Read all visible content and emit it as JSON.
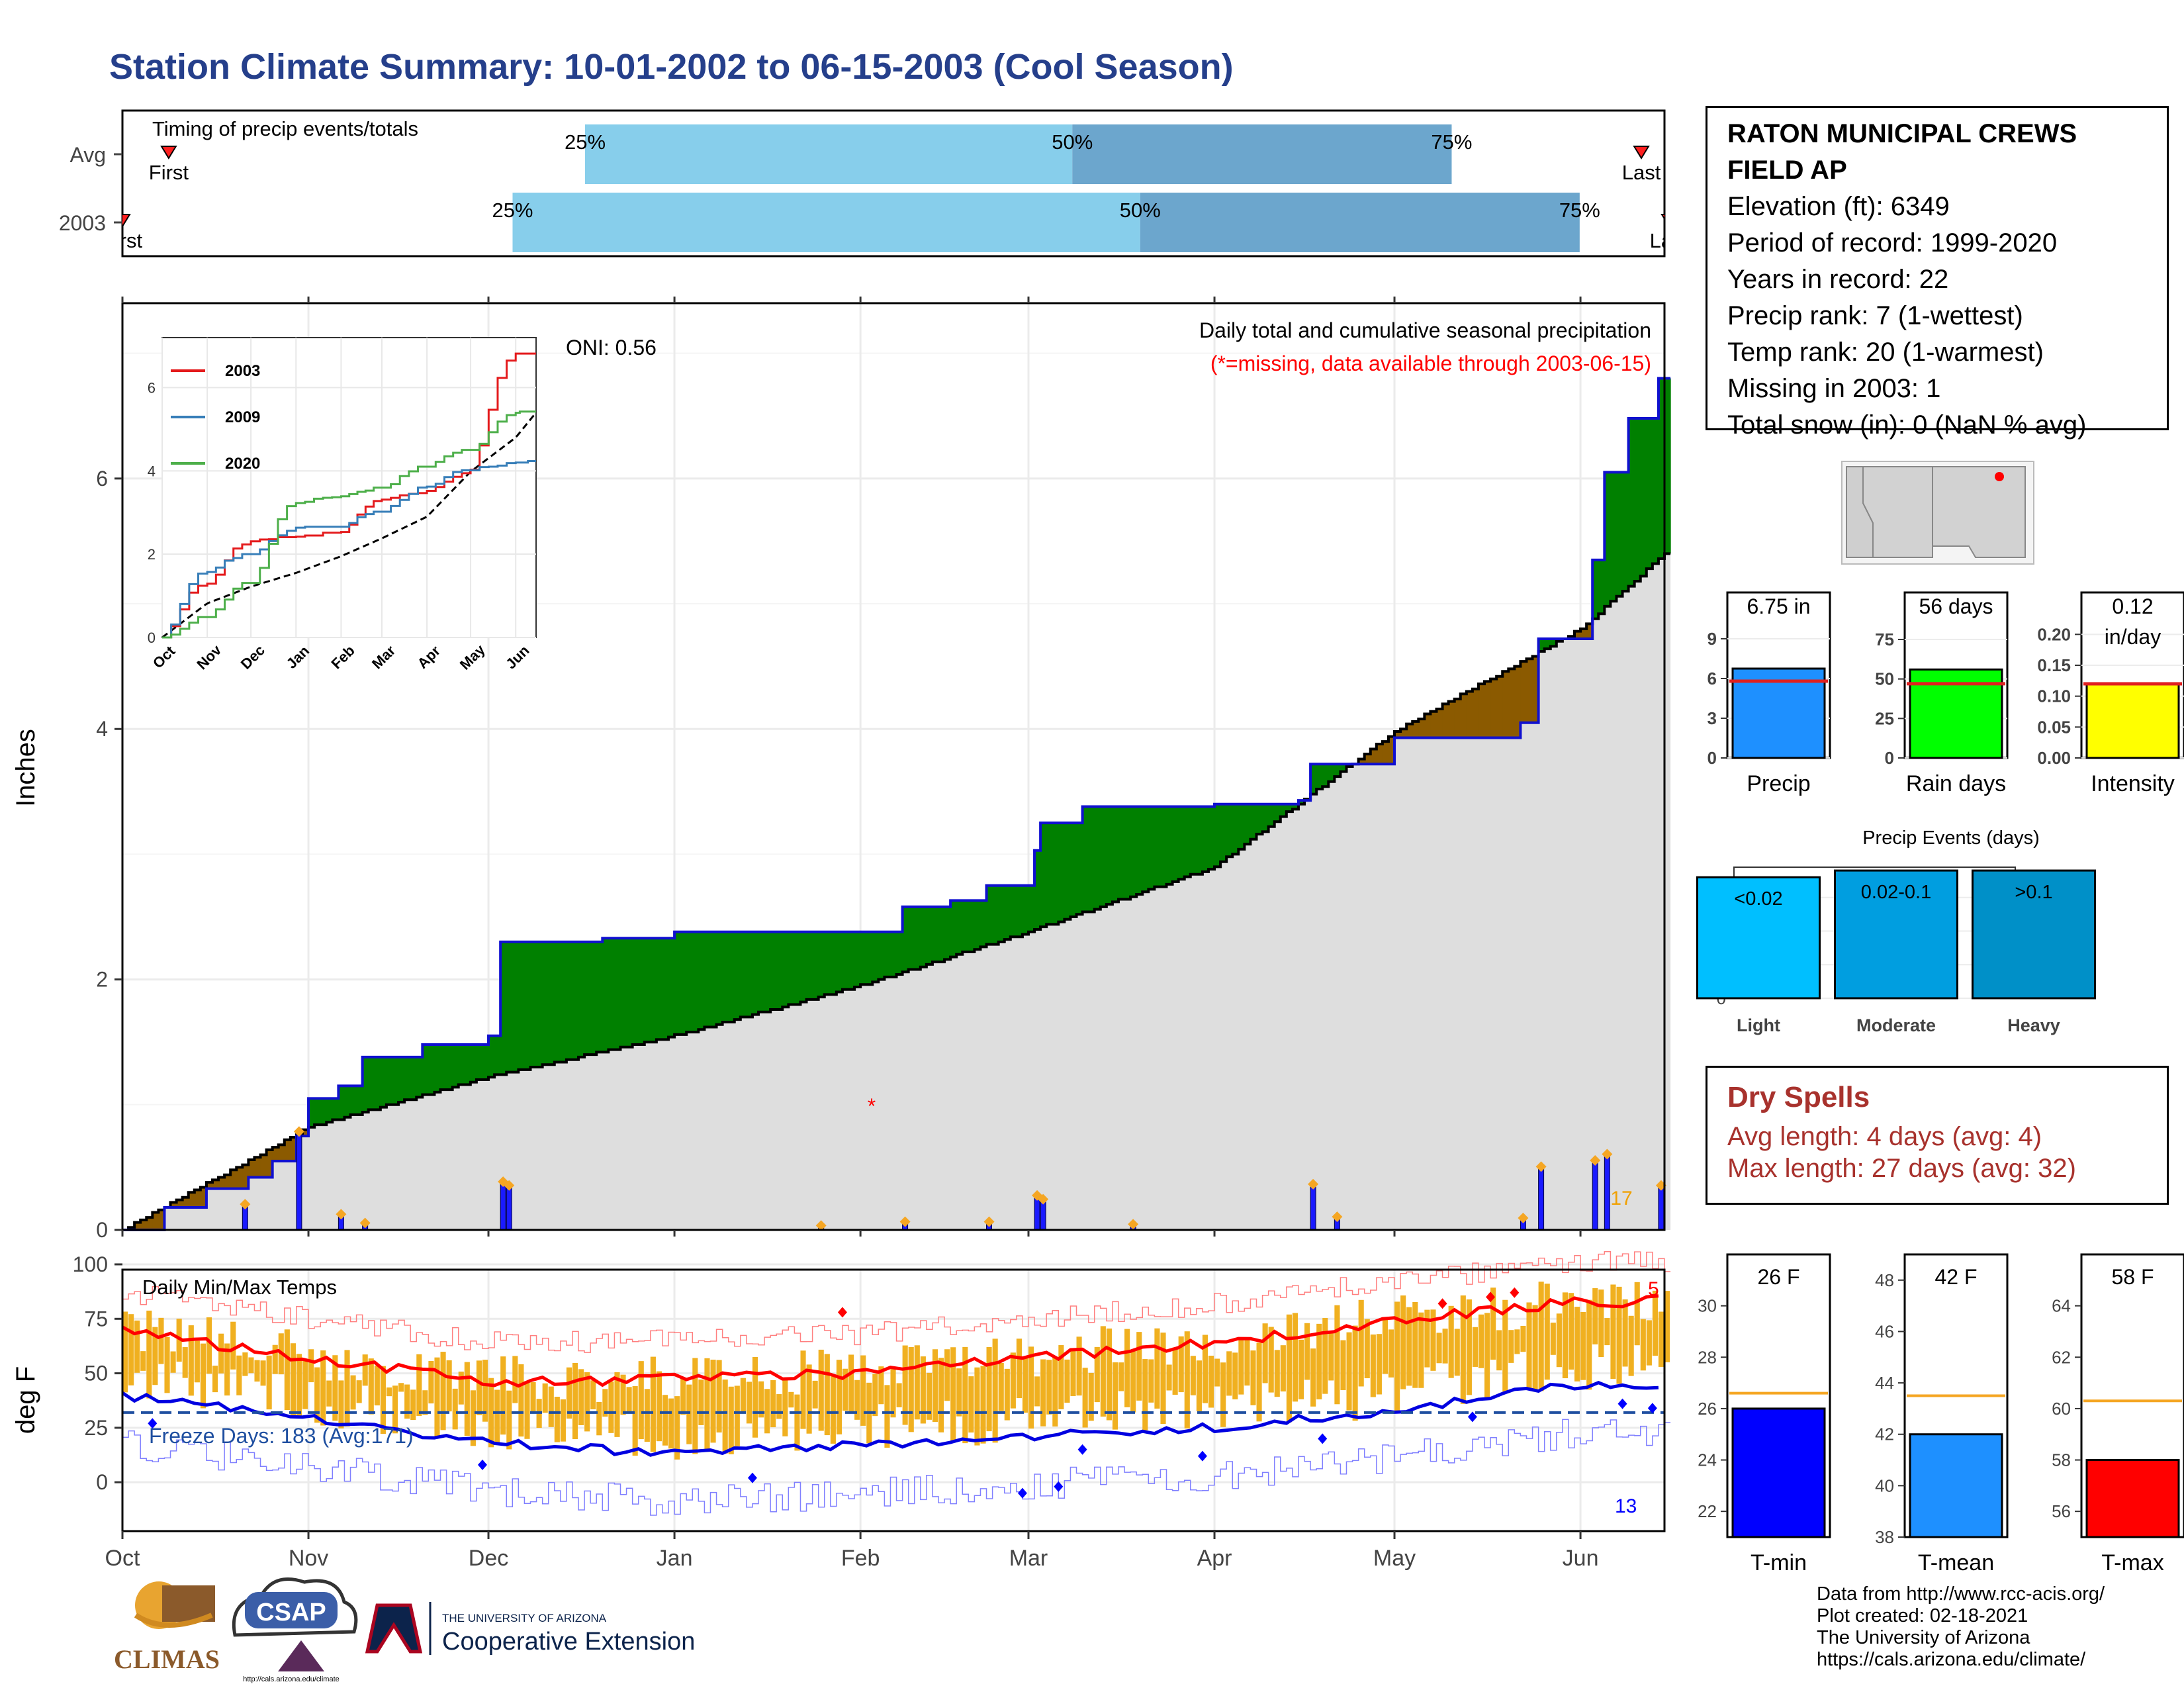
{
  "title": "Station Climate Summary: 10-01-2002 to 06-15-2003 (Cool Season)",
  "colors": {
    "title": "#253f8b",
    "above_avg_fill": "#008000",
    "below_avg_fill": "#8b5a00",
    "cum_fill": "#dedede",
    "daily_bar": "#1a1aff",
    "temp_bar": "#f0b020",
    "tmax_line": "#ff0000",
    "tmin_line": "#0000e0",
    "dry_spells": "#a8322d",
    "quartile_light": "#87ceeb",
    "quartile_dark": "#6ca6cd",
    "precip_bar": "#1e90ff",
    "raindays_bar": "#00ff00",
    "intensity_bar": "#ffff00",
    "event_light": "#00bfff",
    "event_moderate": "#009ee0",
    "event_heavy": "#0090c8",
    "tmin_bar": "#0000ff",
    "tmean_bar": "#1e90ff",
    "tmax_bar": "#ff0000",
    "avg_temp_line": "#f5a623"
  },
  "timing": {
    "title": "Timing of precip events/totals",
    "rows": [
      {
        "label": "Avg",
        "first_label": "First",
        "last_label": "Last",
        "first": 0.03,
        "last": 0.985,
        "q25": 0.3,
        "q50": 0.616,
        "q75": 0.862
      },
      {
        "label": "2003",
        "first_label": "First",
        "last_label": "Last",
        "first": 0.0,
        "last": 1.003,
        "q25": 0.253,
        "q50": 0.66,
        "q75": 0.945
      }
    ],
    "q_labels": [
      "25%",
      "50%",
      "75%"
    ]
  },
  "precip_panel": {
    "ylabel": "Inches",
    "y_ticks": [
      0,
      2,
      4,
      6
    ],
    "month_labels": [
      "Oct",
      "Nov",
      "Dec",
      "Jan",
      "Feb",
      "Mar",
      "Apr",
      "May",
      "Jun"
    ],
    "oni": "ONI: 0.56",
    "legend_title": "Daily total and cumulative seasonal precipitation",
    "missing_note": "(*=missing, data available through 2003-06-15)",
    "max_daily_label": "17",
    "missing_marker": "*"
  },
  "inset": {
    "y_ticks": [
      0,
      2,
      4,
      6
    ],
    "month_labels": [
      "Oct",
      "Nov",
      "Dec",
      "Jan",
      "Feb",
      "Mar",
      "Apr",
      "May",
      "Jun"
    ],
    "series": [
      {
        "name": "2003",
        "color": "#e41a1c"
      },
      {
        "name": "2009",
        "color": "#377eb8"
      },
      {
        "name": "2020",
        "color": "#4daf4a"
      }
    ]
  },
  "temp_panel": {
    "ylabel": "deg F",
    "title": "Daily Min/Max Temps",
    "y_ticks": [
      0,
      25,
      50,
      75,
      100
    ],
    "freeze_label": "Freeze Days: 183 (Avg:171)",
    "record_high_count": "5",
    "record_low_count": "13"
  },
  "station": {
    "name_line1": "RATON MUNICIPAL CREWS",
    "name_line2": "FIELD AP",
    "elevation": "Elevation (ft): 6349",
    "period": "Period of record: 1999-2020",
    "years": "Years in record: 22",
    "precip_rank": "Precip rank: 7 (1-wettest)",
    "temp_rank": "Temp rank: 20 (1-warmest)",
    "missing": "Missing in 2003: 1",
    "snow": "Total snow (in): 0 (NaN % avg)"
  },
  "summary_bars": [
    {
      "label": "Precip",
      "value_label": "6.75 in",
      "value": 6.75,
      "avg": 5.8,
      "ticks": [
        0,
        3,
        6,
        9
      ],
      "ylim": [
        0,
        10.5
      ],
      "fill": "#1e90ff"
    },
    {
      "label": "Rain days",
      "value_label": "56 days",
      "value": 56,
      "avg": 47,
      "ticks": [
        0,
        25,
        50,
        75
      ],
      "ylim": [
        0,
        88
      ],
      "fill": "#00ff00"
    },
    {
      "label": "Intensity",
      "value_label_1": "0.12",
      "value_label_2": "in/day",
      "value": 0.12,
      "avg": 0.12,
      "ticks": [
        "0.00",
        "0.05",
        "0.10",
        "0.15",
        "0.20"
      ],
      "ylim": [
        0,
        0.225
      ],
      "fill": "#ffff00"
    }
  ],
  "events": {
    "title": "Precip Events (days)",
    "ticks": [
      0,
      5,
      10,
      15
    ],
    "ylim": [
      0,
      19.5
    ],
    "bars": [
      {
        "category": "Light",
        "label": "<0.02",
        "value": 18,
        "fill": "#00bfff"
      },
      {
        "category": "Moderate",
        "label": "0.02-0.1",
        "value": 19,
        "fill": "#009ee0"
      },
      {
        "category": "Heavy",
        "label": ">0.1",
        "value": 19,
        "fill": "#0090c8"
      }
    ]
  },
  "dry_spells": {
    "title": "Dry Spells",
    "avg": "Avg length: 4 days (avg: 4)",
    "max": "Max length: 27 days (avg: 32)"
  },
  "temp_bars": [
    {
      "label": "T-min",
      "value_label": "26 F",
      "value": 26,
      "avg": 26.6,
      "ticks": [
        22,
        24,
        26,
        28,
        30
      ],
      "ylim": [
        21,
        32
      ],
      "fill": "#0000ff"
    },
    {
      "label": "T-mean",
      "value_label": "42 F",
      "value": 42,
      "avg": 43.5,
      "ticks": [
        38,
        40,
        42,
        44,
        46,
        48
      ],
      "ylim": [
        38,
        49
      ],
      "fill": "#1e90ff"
    },
    {
      "label": "T-max",
      "value_label": "58 F",
      "value": 58,
      "avg": 60.3,
      "ticks": [
        56,
        58,
        60,
        62,
        64
      ],
      "ylim": [
        55,
        66
      ],
      "fill": "#ff0000"
    }
  ],
  "footer": {
    "line1": "Data from http://www.rcc-acis.org/",
    "line2": "Plot created: 02-18-2021",
    "line3": "The University of Arizona",
    "line4": "https://cals.arizona.edu/climate/"
  },
  "logos": {
    "climas": "CLIMAS",
    "csap": "CSAP",
    "csap_url": "http://cals.arizona.edu/climate",
    "ua_small": "THE UNIVERSITY OF ARIZONA",
    "ua_big": "Cooperative Extension"
  },
  "chart_data": [
    {
      "type": "area",
      "title": "Daily total and cumulative seasonal precipitation",
      "ylabel": "Inches",
      "ylim": [
        0,
        7.4
      ],
      "x_range": [
        "2002-10-01",
        "2003-06-15"
      ],
      "series": [
        {
          "name": "2003 cumulative",
          "points": [
            [
              "2002-10-01",
              0
            ],
            [
              "2002-10-08",
              0.18
            ],
            [
              "2002-10-15",
              0.33
            ],
            [
              "2002-10-22",
              0.42
            ],
            [
              "2002-10-26",
              0.55
            ],
            [
              "2002-10-30",
              0.75
            ],
            [
              "2002-11-01",
              1.05
            ],
            [
              "2002-11-06",
              1.15
            ],
            [
              "2002-11-10",
              1.38
            ],
            [
              "2002-11-20",
              1.48
            ],
            [
              "2002-12-01",
              1.55
            ],
            [
              "2002-12-03",
              2.3
            ],
            [
              "2002-12-20",
              2.33
            ],
            [
              "2003-01-01",
              2.38
            ],
            [
              "2003-02-01",
              2.38
            ],
            [
              "2003-02-08",
              2.58
            ],
            [
              "2003-02-16",
              2.63
            ],
            [
              "2003-02-22",
              2.75
            ],
            [
              "2003-03-02",
              3.03
            ],
            [
              "2003-03-03",
              3.25
            ],
            [
              "2003-03-10",
              3.38
            ],
            [
              "2003-04-01",
              3.4
            ],
            [
              "2003-04-15",
              3.43
            ],
            [
              "2003-04-17",
              3.72
            ],
            [
              "2003-05-01",
              3.93
            ],
            [
              "2003-05-22",
              4.05
            ],
            [
              "2003-05-25",
              4.72
            ],
            [
              "2003-06-03",
              5.35
            ],
            [
              "2003-06-05",
              6.05
            ],
            [
              "2003-06-09",
              6.48
            ],
            [
              "2003-06-14",
              6.8
            ]
          ]
        },
        {
          "name": "Average cumulative",
          "points": [
            [
              "2002-10-01",
              0
            ],
            [
              "2002-11-01",
              0.82
            ],
            [
              "2002-12-01",
              1.22
            ],
            [
              "2003-01-01",
              1.55
            ],
            [
              "2003-02-01",
              1.95
            ],
            [
              "2003-03-01",
              2.38
            ],
            [
              "2003-04-01",
              2.9
            ],
            [
              "2003-05-01",
              3.98
            ],
            [
              "2003-06-01",
              4.8
            ],
            [
              "2003-06-15",
              5.4
            ]
          ]
        },
        {
          "name": "Daily precip",
          "points": [
            [
              "2002-10-21",
              0.2
            ],
            [
              "2002-10-30",
              0.78
            ],
            [
              "2002-11-06",
              0.12
            ],
            [
              "2002-11-10",
              0.05
            ],
            [
              "2002-12-03",
              0.38
            ],
            [
              "2002-12-04",
              0.35
            ],
            [
              "2003-01-25",
              0.03
            ],
            [
              "2003-02-08",
              0.06
            ],
            [
              "2003-02-22",
              0.06
            ],
            [
              "2003-03-02",
              0.27
            ],
            [
              "2003-03-03",
              0.24
            ],
            [
              "2003-03-18",
              0.04
            ],
            [
              "2003-04-17",
              0.36
            ],
            [
              "2003-04-21",
              0.1
            ],
            [
              "2003-05-22",
              0.09
            ],
            [
              "2003-05-25",
              0.5
            ],
            [
              "2003-06-03",
              0.55
            ],
            [
              "2003-06-05",
              0.6
            ],
            [
              "2003-06-14",
              0.35
            ]
          ]
        }
      ]
    },
    {
      "type": "line",
      "title": "",
      "ylim": [
        0,
        7.2
      ],
      "series": [
        {
          "name": "2003",
          "x": [
            "Oct",
            "Nov",
            "Dec",
            "Jan",
            "Feb",
            "Mar",
            "Apr",
            "May",
            "Jun"
          ],
          "values": [
            0,
            1.3,
            2.3,
            2.4,
            2.5,
            3.3,
            3.5,
            4.0,
            6.8
          ]
        },
        {
          "name": "2009",
          "x": [
            "Oct",
            "Nov",
            "Dec",
            "Jan",
            "Feb",
            "Mar",
            "Apr",
            "May",
            "Jun"
          ],
          "values": [
            0,
            1.6,
            2.0,
            2.6,
            2.6,
            3.0,
            3.6,
            4.0,
            4.2
          ]
        },
        {
          "name": "2020",
          "x": [
            "Oct",
            "Nov",
            "Dec",
            "Jan",
            "Feb",
            "Mar",
            "Apr",
            "May",
            "Jun"
          ],
          "values": [
            0,
            0.5,
            1.3,
            3.2,
            3.4,
            3.6,
            4.1,
            4.5,
            5.4
          ]
        }
      ]
    },
    {
      "type": "line",
      "title": "Daily Min/Max Temps",
      "ylabel": "deg F",
      "ylim": [
        -20,
        100
      ],
      "x": [
        "Oct",
        "Nov",
        "Dec",
        "Jan",
        "Feb",
        "Mar",
        "Apr",
        "May",
        "Jun"
      ],
      "series": [
        {
          "name": "Avg max",
          "values": [
            69,
            57,
            46,
            47,
            50,
            57,
            64,
            74,
            83
          ]
        },
        {
          "name": "Avg min",
          "values": [
            40,
            29,
            18,
            13,
            17,
            21,
            25,
            33,
            45
          ]
        },
        {
          "name": "Freeze threshold",
          "values": [
            32,
            32,
            32,
            32,
            32,
            32,
            32,
            32,
            32
          ]
        }
      ]
    },
    {
      "type": "bar",
      "title": "Precip Events (days)",
      "categories": [
        "Light",
        "Moderate",
        "Heavy"
      ],
      "values": [
        18,
        19,
        19
      ]
    }
  ]
}
